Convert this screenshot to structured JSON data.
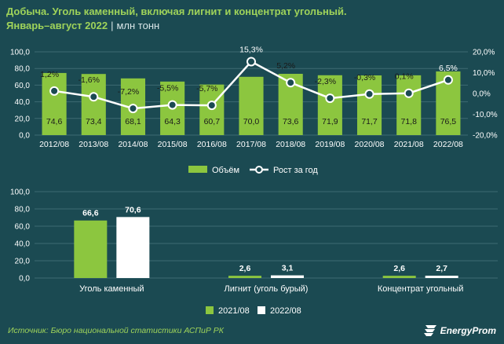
{
  "header": {
    "title": "Добыча. Уголь каменный, включая лигнит и концентрат угольный.",
    "period": "Январь–август 2022",
    "separator": "|",
    "unit": "млн тонн"
  },
  "chart_data": [
    {
      "type": "bar",
      "categories": [
        "2012/08",
        "2013/08",
        "2014/08",
        "2015/08",
        "2016/08",
        "2017/08",
        "2018/08",
        "2019/08",
        "2020/08",
        "2021/08",
        "2022/08"
      ],
      "series": [
        {
          "name": "Объём",
          "type": "bar",
          "values": [
            74.6,
            73.4,
            68.1,
            64.3,
            60.7,
            70.0,
            73.6,
            71.9,
            71.7,
            71.8,
            76.5
          ],
          "labels": [
            "74,6",
            "73,4",
            "68,1",
            "64,3",
            "60,7",
            "70,0",
            "73,6",
            "71,9",
            "71,7",
            "71,8",
            "76,5"
          ]
        },
        {
          "name": "Рост за год",
          "type": "line",
          "axis": "right",
          "values": [
            1.2,
            -1.6,
            -7.2,
            -5.5,
            -5.7,
            15.3,
            5.2,
            -2.3,
            -0.3,
            0.1,
            6.5
          ],
          "labels": [
            "1,2%",
            "-1,6%",
            "-7,2%",
            "-5,5%",
            "-5,7%",
            "15,3%",
            "5,2%",
            "-2,3%",
            "-0,3%",
            "0,1%",
            "6,5%"
          ]
        }
      ],
      "ylim": [
        0,
        100
      ],
      "yticks": [
        "0,0",
        "20,0",
        "40,0",
        "60,0",
        "80,0",
        "100,0"
      ],
      "y2lim": [
        -20,
        20
      ],
      "y2ticks": [
        "-20,0%",
        "-10,0%",
        "0,0%",
        "10,0%",
        "20,0%"
      ],
      "grid": true,
      "legend": "bottom",
      "colors": {
        "bar": "#8cc63f",
        "line": "#ffffff"
      }
    },
    {
      "type": "bar",
      "categories": [
        "Уголь каменный",
        "Лигнит (уголь бурый)",
        "Концентрат угольный"
      ],
      "series": [
        {
          "name": "2021/08",
          "values": [
            66.6,
            2.6,
            2.6
          ],
          "labels": [
            "66,6",
            "2,6",
            "2,6"
          ]
        },
        {
          "name": "2022/08",
          "values": [
            70.6,
            3.1,
            2.7
          ],
          "labels": [
            "70,6",
            "3,1",
            "2,7"
          ]
        }
      ],
      "ylim": [
        0,
        100
      ],
      "yticks": [
        "0,0",
        "20,0",
        "40,0",
        "60,0",
        "80,0",
        "100,0"
      ],
      "grid": true,
      "legend": "bottom",
      "colors": {
        "s2021": "#8cc63f",
        "s2022": "#ffffff"
      }
    }
  ],
  "footer": {
    "source": "Источник: Бюро национальной статистики АСПиР РК",
    "logo": "EnergyProm"
  }
}
